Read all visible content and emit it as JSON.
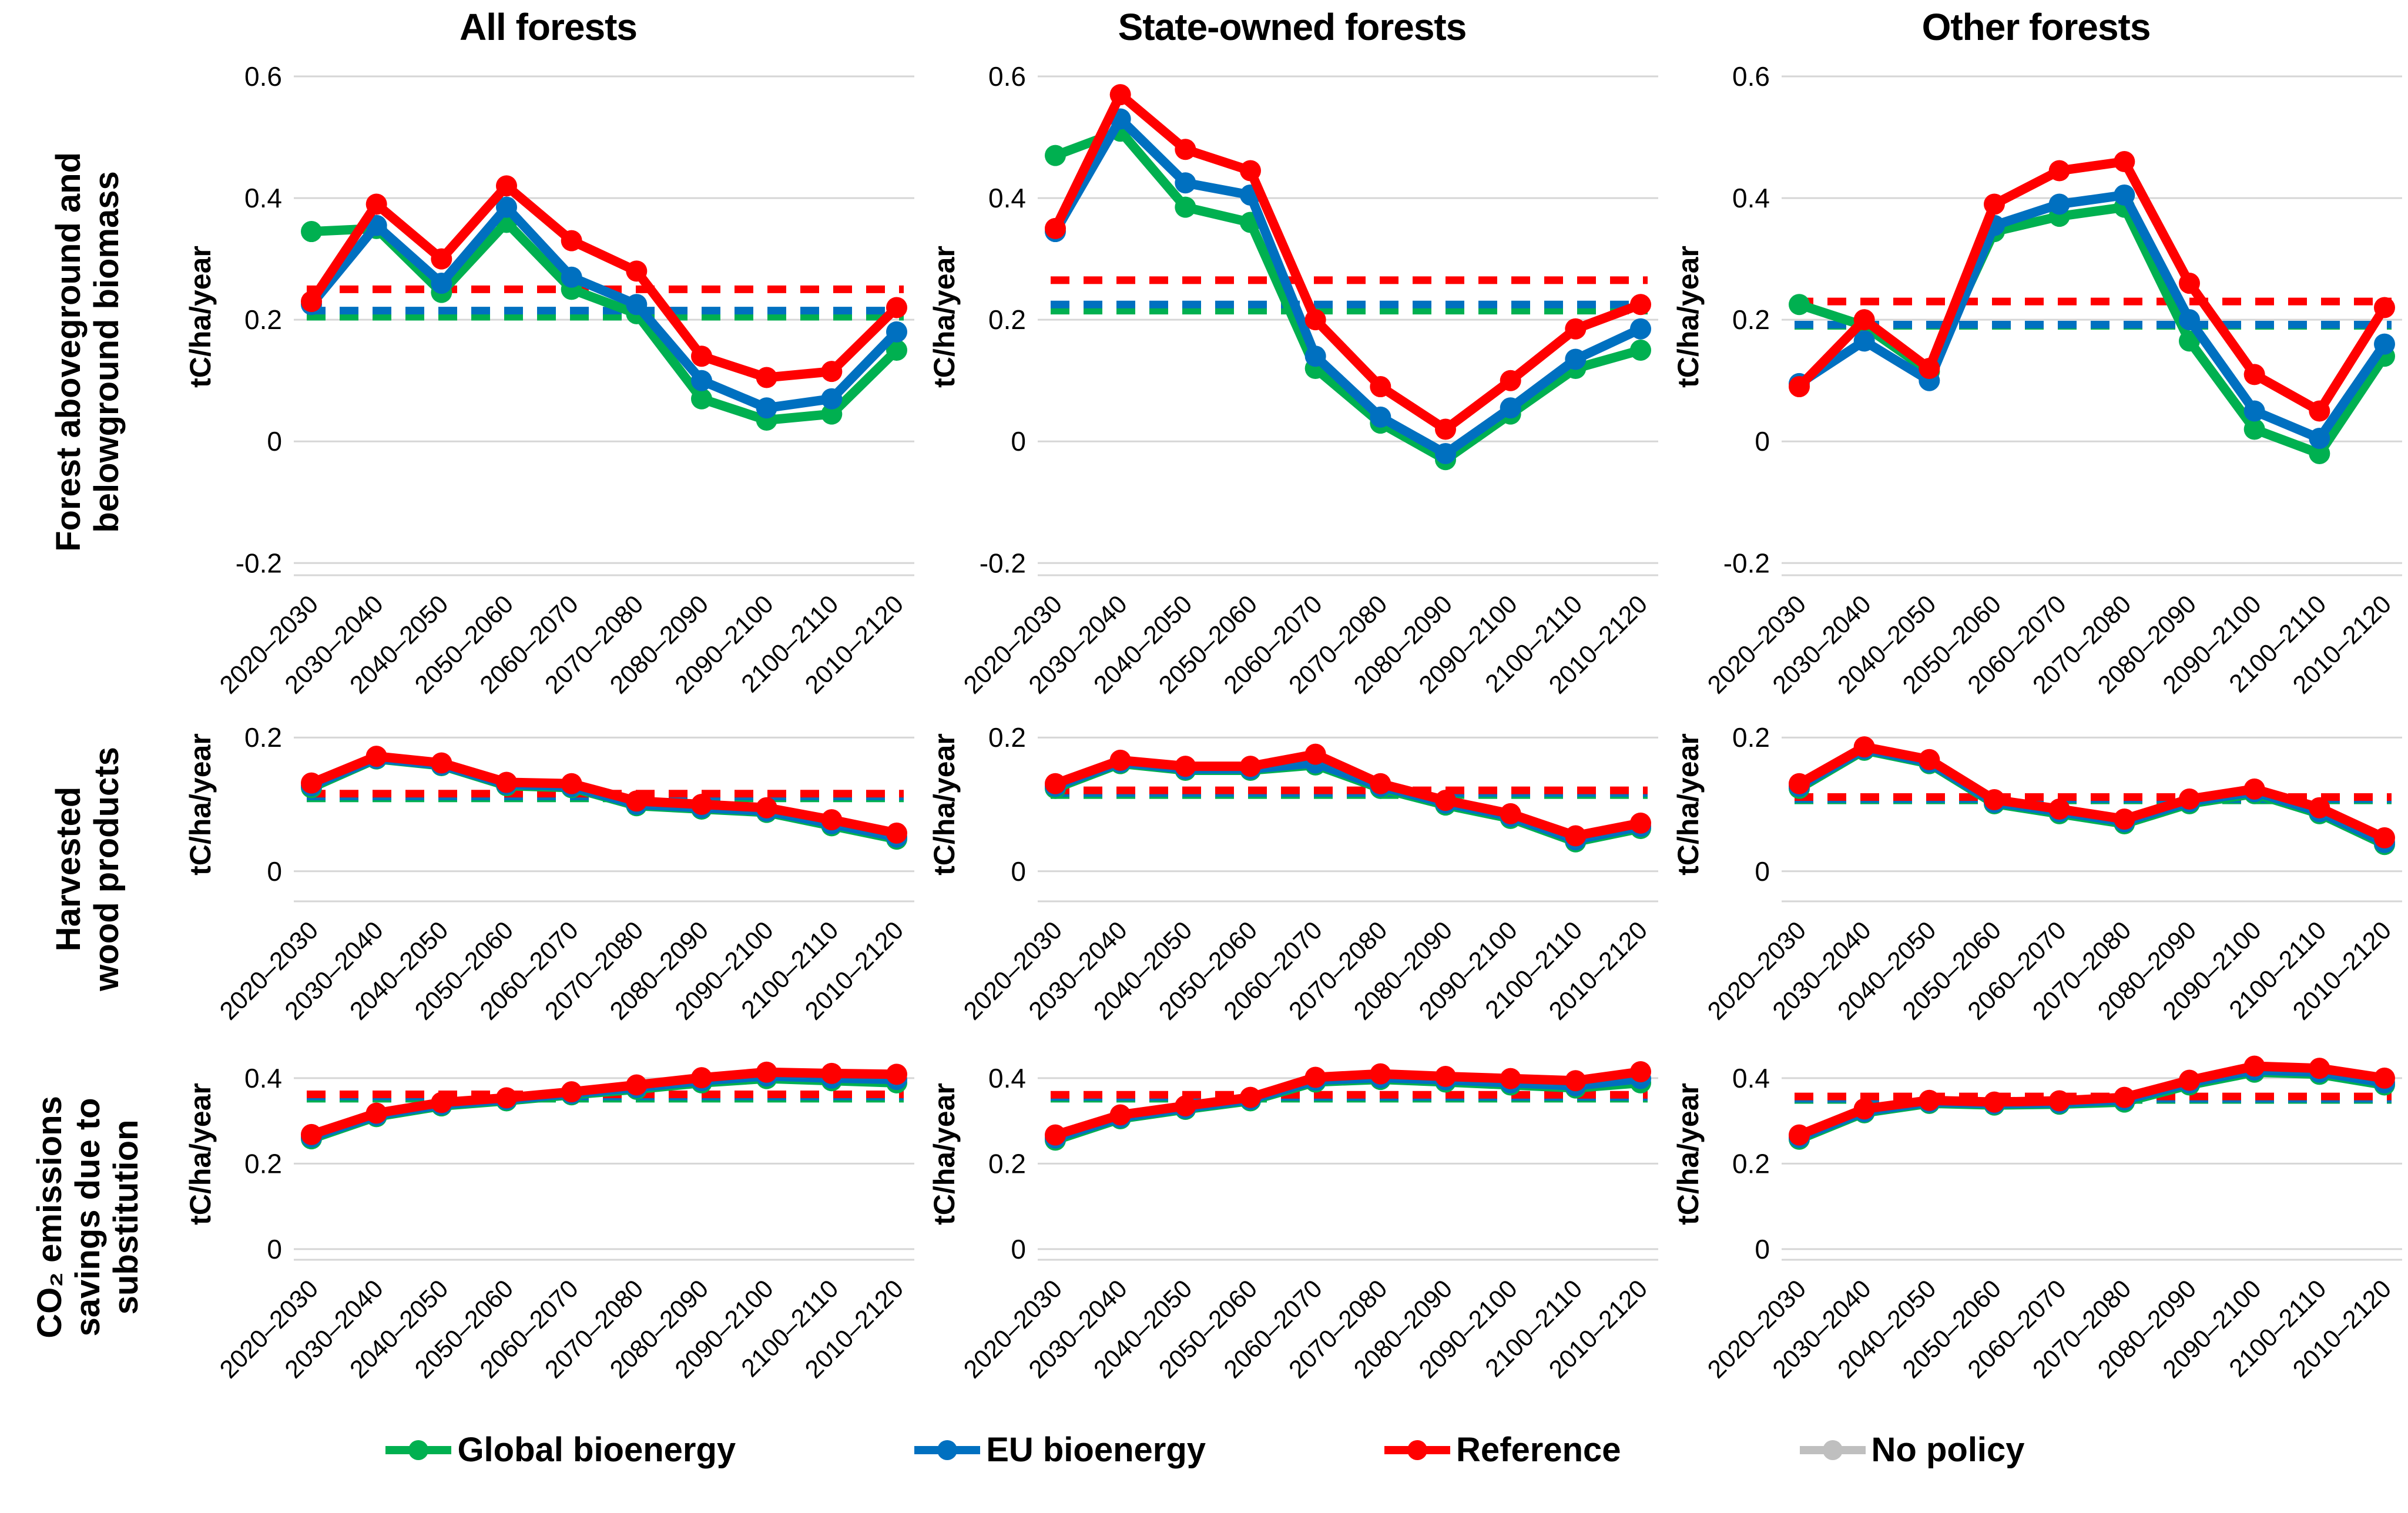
{
  "y_axis_label": "tC/ha/year",
  "categories": [
    "2020–2030",
    "2030–2040",
    "2040–2050",
    "2050–2060",
    "2060–2070",
    "2070–2080",
    "2080–2090",
    "2090–2100",
    "2100–2110",
    "2010–2120"
  ],
  "rows": [
    {
      "label_lines": [
        "Forest aboveground and",
        "belowground biomass"
      ]
    },
    {
      "label_lines": [
        "Harvested",
        "wood products"
      ]
    },
    {
      "label_lines": [
        "CO₂ emissions",
        "savings due to",
        "substitution"
      ]
    }
  ],
  "legend": [
    {
      "key": "global-bioenergy",
      "label": "Global bioenergy",
      "color": "#00B050"
    },
    {
      "key": "eu-bioenergy",
      "label": "EU bioenergy",
      "color": "#0070C0"
    },
    {
      "key": "reference",
      "label": "Reference",
      "color": "#FF0000"
    },
    {
      "key": "no-policy",
      "label": "No policy",
      "color": "#BFBFBF"
    }
  ],
  "chart_data": [
    {
      "type": "line",
      "row": 0,
      "title": "All forests",
      "ylabel": "tC/ha/year",
      "ylim": [
        -0.22,
        0.63
      ],
      "yticks": [
        0.6,
        0.4,
        0.2,
        0,
        -0.2
      ],
      "series": [
        {
          "name": "Global bioenergy",
          "color": "#00B050",
          "values": [
            0.345,
            0.35,
            0.245,
            0.36,
            0.25,
            0.21,
            0.07,
            0.035,
            0.045,
            0.15
          ]
        },
        {
          "name": "EU bioenergy",
          "color": "#0070C0",
          "values": [
            0.225,
            0.355,
            0.26,
            0.385,
            0.27,
            0.225,
            0.1,
            0.055,
            0.07,
            0.18
          ]
        },
        {
          "name": "Reference",
          "color": "#FF0000",
          "values": [
            0.23,
            0.39,
            0.3,
            0.42,
            0.33,
            0.28,
            0.14,
            0.105,
            0.115,
            0.22
          ]
        }
      ],
      "dashed": [
        {
          "name": "Global bioenergy avg",
          "color": "#00B050",
          "value": 0.205
        },
        {
          "name": "EU bioenergy avg",
          "color": "#0070C0",
          "value": 0.215
        },
        {
          "name": "Reference avg",
          "color": "#FF0000",
          "value": 0.25
        }
      ]
    },
    {
      "type": "line",
      "row": 0,
      "title": "State-owned forests",
      "ylabel": "tC/ha/year",
      "ylim": [
        -0.22,
        0.63
      ],
      "yticks": [
        0.6,
        0.4,
        0.2,
        0,
        -0.2
      ],
      "series": [
        {
          "name": "Global bioenergy",
          "color": "#00B050",
          "values": [
            0.47,
            0.51,
            0.385,
            0.36,
            0.12,
            0.03,
            -0.03,
            0.045,
            0.12,
            0.15
          ]
        },
        {
          "name": "EU bioenergy",
          "color": "#0070C0",
          "values": [
            0.345,
            0.53,
            0.425,
            0.405,
            0.14,
            0.04,
            -0.02,
            0.055,
            0.135,
            0.185
          ]
        },
        {
          "name": "Reference",
          "color": "#FF0000",
          "values": [
            0.35,
            0.57,
            0.48,
            0.445,
            0.2,
            0.09,
            0.02,
            0.1,
            0.185,
            0.225
          ]
        }
      ],
      "dashed": [
        {
          "name": "Global bioenergy avg",
          "color": "#00B050",
          "value": 0.215
        },
        {
          "name": "EU bioenergy avg",
          "color": "#0070C0",
          "value": 0.225
        },
        {
          "name": "Reference avg",
          "color": "#FF0000",
          "value": 0.265
        }
      ]
    },
    {
      "type": "line",
      "row": 0,
      "title": "Other forests",
      "ylabel": "tC/ha/year",
      "ylim": [
        -0.22,
        0.63
      ],
      "yticks": [
        0.6,
        0.4,
        0.2,
        0,
        -0.2
      ],
      "series": [
        {
          "name": "Global bioenergy",
          "color": "#00B050",
          "values": [
            0.225,
            0.19,
            0.115,
            0.345,
            0.37,
            0.385,
            0.165,
            0.02,
            -0.02,
            0.14
          ]
        },
        {
          "name": "EU bioenergy",
          "color": "#0070C0",
          "values": [
            0.095,
            0.165,
            0.1,
            0.355,
            0.39,
            0.405,
            0.2,
            0.05,
            0.005,
            0.16
          ]
        },
        {
          "name": "Reference",
          "color": "#FF0000",
          "values": [
            0.09,
            0.2,
            0.12,
            0.39,
            0.445,
            0.46,
            0.26,
            0.11,
            0.05,
            0.22
          ]
        }
      ],
      "dashed": [
        {
          "name": "Global bioenergy avg",
          "color": "#00B050",
          "value": 0.19
        },
        {
          "name": "EU bioenergy avg",
          "color": "#0070C0",
          "value": 0.192
        },
        {
          "name": "Reference avg",
          "color": "#FF0000",
          "value": 0.23
        }
      ]
    },
    {
      "type": "line",
      "row": 1,
      "title": "",
      "ylabel": "tC/ha/year",
      "ylim": [
        -0.045,
        0.245
      ],
      "yticks": [
        0.2,
        0
      ],
      "series": [
        {
          "name": "Global bioenergy",
          "color": "#00B050",
          "values": [
            0.125,
            0.168,
            0.158,
            0.128,
            0.125,
            0.098,
            0.093,
            0.088,
            0.068,
            0.048
          ]
        },
        {
          "name": "EU bioenergy",
          "color": "#0070C0",
          "values": [
            0.128,
            0.169,
            0.159,
            0.13,
            0.127,
            0.1,
            0.095,
            0.09,
            0.071,
            0.051
          ]
        },
        {
          "name": "Reference",
          "color": "#FF0000",
          "values": [
            0.132,
            0.172,
            0.162,
            0.133,
            0.131,
            0.105,
            0.1,
            0.095,
            0.077,
            0.057
          ]
        }
      ],
      "dashed": [
        {
          "name": "Global bioenergy avg",
          "color": "#00B050",
          "value": 0.109
        },
        {
          "name": "EU bioenergy avg",
          "color": "#0070C0",
          "value": 0.112
        },
        {
          "name": "Reference avg",
          "color": "#FF0000",
          "value": 0.116
        }
      ]
    },
    {
      "type": "line",
      "row": 1,
      "title": "",
      "ylabel": "tC/ha/year",
      "ylim": [
        -0.045,
        0.245
      ],
      "yticks": [
        0.2,
        0
      ],
      "series": [
        {
          "name": "Global bioenergy",
          "color": "#00B050",
          "values": [
            0.124,
            0.161,
            0.151,
            0.151,
            0.159,
            0.124,
            0.099,
            0.079,
            0.044,
            0.064
          ]
        },
        {
          "name": "EU bioenergy",
          "color": "#0070C0",
          "values": [
            0.127,
            0.163,
            0.153,
            0.153,
            0.162,
            0.127,
            0.102,
            0.082,
            0.047,
            0.067
          ]
        },
        {
          "name": "Reference",
          "color": "#FF0000",
          "values": [
            0.131,
            0.166,
            0.157,
            0.157,
            0.175,
            0.131,
            0.106,
            0.086,
            0.053,
            0.072
          ]
        }
      ],
      "dashed": [
        {
          "name": "Global bioenergy avg",
          "color": "#00B050",
          "value": 0.114
        },
        {
          "name": "EU bioenergy avg",
          "color": "#0070C0",
          "value": 0.117
        },
        {
          "name": "Reference avg",
          "color": "#FF0000",
          "value": 0.121
        }
      ]
    },
    {
      "type": "line",
      "row": 1,
      "title": "",
      "ylabel": "tC/ha/year",
      "ylim": [
        -0.045,
        0.245
      ],
      "yticks": [
        0.2,
        0
      ],
      "series": [
        {
          "name": "Global bioenergy",
          "color": "#00B050",
          "values": [
            0.124,
            0.181,
            0.161,
            0.101,
            0.086,
            0.071,
            0.101,
            0.116,
            0.086,
            0.04
          ]
        },
        {
          "name": "EU bioenergy",
          "color": "#0070C0",
          "values": [
            0.127,
            0.183,
            0.163,
            0.103,
            0.089,
            0.074,
            0.104,
            0.119,
            0.089,
            0.043
          ]
        },
        {
          "name": "Reference",
          "color": "#FF0000",
          "values": [
            0.131,
            0.186,
            0.167,
            0.107,
            0.093,
            0.078,
            0.108,
            0.123,
            0.095,
            0.05
          ]
        }
      ],
      "dashed": [
        {
          "name": "Global bioenergy avg",
          "color": "#00B050",
          "value": 0.106
        },
        {
          "name": "EU bioenergy avg",
          "color": "#0070C0",
          "value": 0.108
        },
        {
          "name": "Reference avg",
          "color": "#FF0000",
          "value": 0.111
        }
      ]
    },
    {
      "type": "line",
      "row": 2,
      "title": "",
      "ylabel": "tC/ha/year",
      "ylim": [
        -0.025,
        0.47
      ],
      "yticks": [
        0.4,
        0.2,
        0
      ],
      "series": [
        {
          "name": "Global bioenergy",
          "color": "#00B050",
          "values": [
            0.258,
            0.31,
            0.335,
            0.347,
            0.361,
            0.374,
            0.389,
            0.399,
            0.394,
            0.389
          ]
        },
        {
          "name": "EU bioenergy",
          "color": "#0070C0",
          "values": [
            0.262,
            0.313,
            0.338,
            0.35,
            0.364,
            0.378,
            0.394,
            0.405,
            0.4,
            0.397
          ]
        },
        {
          "name": "Reference",
          "color": "#FF0000",
          "values": [
            0.268,
            0.318,
            0.343,
            0.354,
            0.368,
            0.384,
            0.401,
            0.414,
            0.411,
            0.409
          ]
        }
      ],
      "dashed": [
        {
          "name": "Global bioenergy avg",
          "color": "#00B050",
          "value": 0.352
        },
        {
          "name": "EU bioenergy avg",
          "color": "#0070C0",
          "value": 0.357
        },
        {
          "name": "Reference avg",
          "color": "#FF0000",
          "value": 0.362
        }
      ]
    },
    {
      "type": "line",
      "row": 2,
      "title": "",
      "ylabel": "tC/ha/year",
      "ylim": [
        -0.025,
        0.47
      ],
      "yticks": [
        0.4,
        0.2,
        0
      ],
      "series": [
        {
          "name": "Global bioenergy",
          "color": "#00B050",
          "values": [
            0.255,
            0.305,
            0.327,
            0.347,
            0.391,
            0.397,
            0.391,
            0.384,
            0.377,
            0.389
          ]
        },
        {
          "name": "EU bioenergy",
          "color": "#0070C0",
          "values": [
            0.26,
            0.308,
            0.33,
            0.35,
            0.395,
            0.401,
            0.396,
            0.389,
            0.382,
            0.399
          ]
        },
        {
          "name": "Reference",
          "color": "#FF0000",
          "values": [
            0.267,
            0.314,
            0.335,
            0.355,
            0.402,
            0.41,
            0.404,
            0.399,
            0.394,
            0.415
          ]
        }
      ],
      "dashed": [
        {
          "name": "Global bioenergy avg",
          "color": "#00B050",
          "value": 0.352
        },
        {
          "name": "EU bioenergy avg",
          "color": "#0070C0",
          "value": 0.356
        },
        {
          "name": "Reference avg",
          "color": "#FF0000",
          "value": 0.361
        }
      ]
    },
    {
      "type": "line",
      "row": 2,
      "title": "",
      "ylabel": "tC/ha/year",
      "ylim": [
        -0.025,
        0.47
      ],
      "yticks": [
        0.4,
        0.2,
        0
      ],
      "series": [
        {
          "name": "Global bioenergy",
          "color": "#00B050",
          "values": [
            0.257,
            0.319,
            0.341,
            0.337,
            0.339,
            0.344,
            0.384,
            0.414,
            0.409,
            0.384
          ]
        },
        {
          "name": "EU bioenergy",
          "color": "#0070C0",
          "values": [
            0.261,
            0.322,
            0.344,
            0.34,
            0.342,
            0.349,
            0.389,
            0.419,
            0.414,
            0.389
          ]
        },
        {
          "name": "Reference",
          "color": "#FF0000",
          "values": [
            0.267,
            0.328,
            0.348,
            0.344,
            0.347,
            0.355,
            0.395,
            0.428,
            0.423,
            0.4
          ]
        }
      ],
      "dashed": [
        {
          "name": "Global bioenergy avg",
          "color": "#00B050",
          "value": 0.349
        },
        {
          "name": "EU bioenergy avg",
          "color": "#0070C0",
          "value": 0.352
        },
        {
          "name": "Reference avg",
          "color": "#FF0000",
          "value": 0.357
        }
      ]
    }
  ]
}
